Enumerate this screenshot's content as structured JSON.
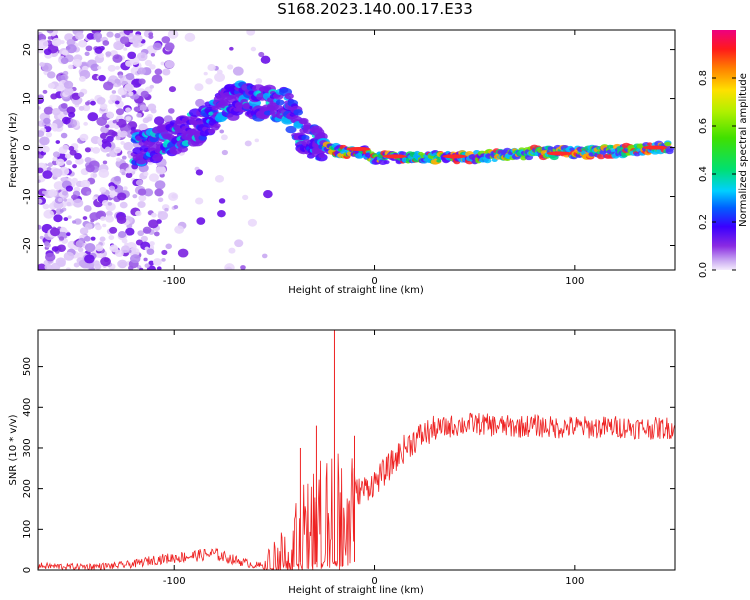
{
  "page_title": "S168.2023.140.00.17.E33",
  "chart_data": [
    {
      "type": "heatmap",
      "title": "S168.2023.140.00.17.E33",
      "xlabel": "Height of straight line (km)",
      "ylabel": "Frequency (Hz)",
      "xlim": [
        -168,
        150
      ],
      "ylim": [
        -25,
        24
      ],
      "x_ticks": [
        -100,
        0,
        100
      ],
      "y_ticks": [
        -20,
        -10,
        0,
        10,
        20
      ],
      "grid": false,
      "colormap": [
        "#e8d8f8",
        "#c7a7f0",
        "#8a2be2",
        "#5a00ff",
        "#0000ff",
        "#00a0ff",
        "#00e5e5",
        "#00e000",
        "#7fff00",
        "#ffff00",
        "#ffa500",
        "#ff2020",
        "#f00080"
      ],
      "ridge_frequency": {
        "x": [
          -115,
          -100,
          -85,
          -75,
          -65,
          -55,
          -45,
          -35,
          -25,
          -15,
          -5,
          0,
          20,
          50,
          80,
          110,
          148
        ],
        "y": [
          0,
          2,
          5,
          9,
          10,
          9,
          9,
          2,
          0,
          -1,
          -1,
          -2,
          -2,
          -2,
          -1,
          -1,
          0
        ]
      },
      "colorbar": {
        "label": "Normalized spectral amplitude",
        "range": [
          0,
          1
        ],
        "ticks": [
          0.0,
          0.2,
          0.4,
          0.6,
          0.8
        ]
      }
    },
    {
      "type": "line",
      "xlabel": "Height of straight line (km)",
      "ylabel": "SNR (10 * v/v)",
      "xlim": [
        -168,
        150
      ],
      "ylim": [
        0,
        590
      ],
      "x_ticks": [
        -100,
        0,
        100
      ],
      "y_ticks": [
        0,
        100,
        200,
        300,
        400,
        500
      ],
      "grid": false,
      "color": "#ee2222",
      "series": [
        {
          "x": [
            -168,
            -150,
            -130,
            -120,
            -110,
            -100,
            -90,
            -80,
            -70,
            -60,
            -55,
            -50,
            -45,
            -40,
            -35,
            -30,
            -25,
            -20,
            -15,
            -10,
            -5,
            0,
            5,
            10,
            15,
            20,
            25,
            30,
            40,
            50,
            60,
            70,
            80,
            90,
            100,
            110,
            120,
            130,
            140,
            150
          ],
          "y": [
            10,
            8,
            10,
            15,
            25,
            30,
            35,
            40,
            25,
            12,
            10,
            15,
            40,
            80,
            110,
            130,
            160,
            170,
            180,
            190,
            200,
            215,
            240,
            270,
            300,
            320,
            335,
            345,
            355,
            360,
            355,
            352,
            355,
            350,
            352,
            350,
            352,
            350,
            348,
            350
          ]
        }
      ],
      "spikes": [
        {
          "x": -37,
          "y": 300
        },
        {
          "x": -29,
          "y": 355
        },
        {
          "x": -20,
          "y": 590
        },
        {
          "x": -10,
          "y": 330
        }
      ]
    }
  ]
}
